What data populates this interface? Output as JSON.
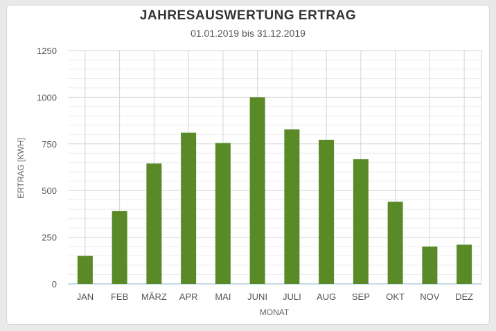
{
  "chart_data": {
    "type": "bar",
    "title": "JAHRESAUSWERTUNG ERTRAG",
    "subtitle": "01.01.2019 bis 31.12.2019",
    "xlabel": "MONAT",
    "ylabel": "ERTRAG [KWH]",
    "categories": [
      "JAN",
      "FEB",
      "MÄRZ",
      "APR",
      "MAI",
      "JUNI",
      "JULI",
      "AUG",
      "SEP",
      "OKT",
      "NOV",
      "DEZ"
    ],
    "values": [
      150,
      390,
      645,
      810,
      755,
      1000,
      828,
      772,
      668,
      440,
      200,
      210
    ],
    "ylim": [
      0,
      1250
    ],
    "yticks": [
      0,
      250,
      500,
      750,
      1000,
      1250
    ],
    "grid": true,
    "legend": "none",
    "colors": {
      "bar": "#5a8a27",
      "grid": "#d3d3d3",
      "axis": "#b0cfe0"
    }
  }
}
